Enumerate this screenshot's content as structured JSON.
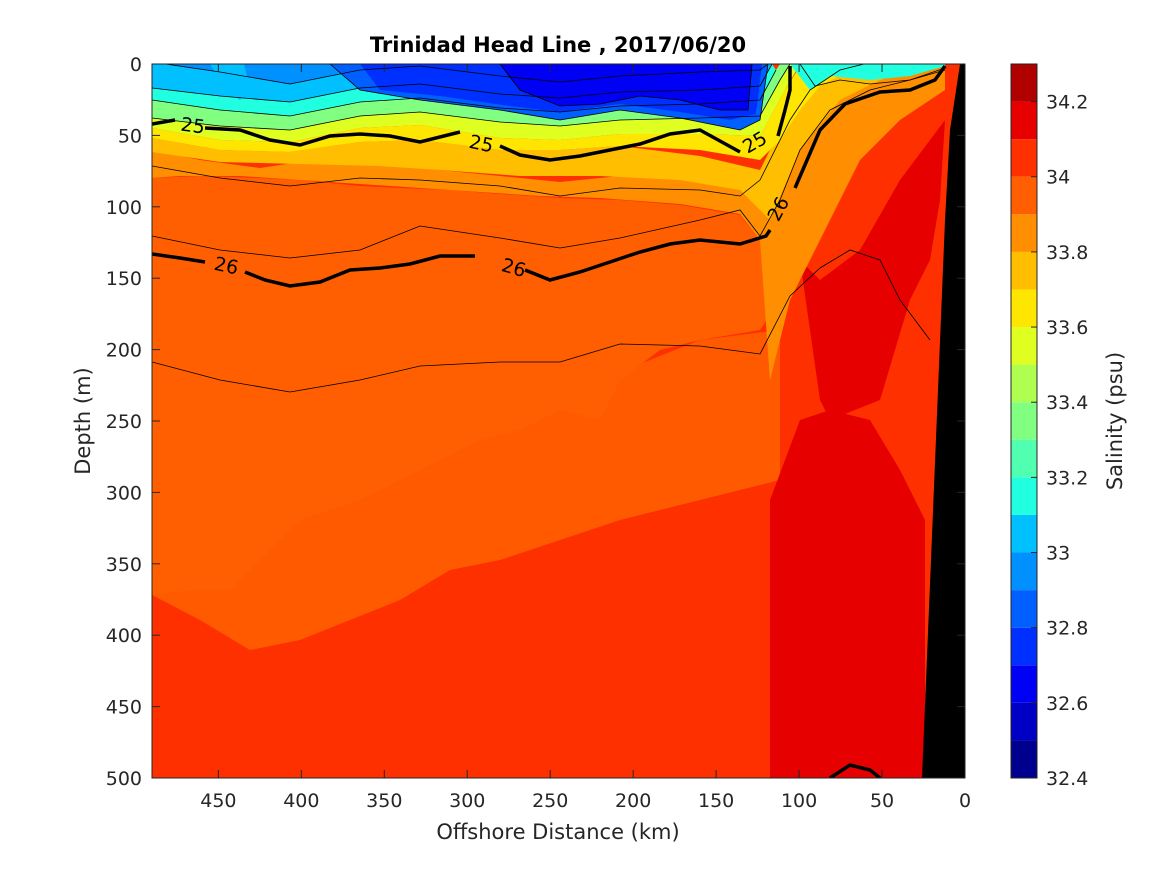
{
  "chart_data": {
    "type": "contour",
    "title": "Trinidad Head Line , 2017/06/20",
    "xlabel": "Offshore Distance (km)",
    "ylabel": "Depth (m)",
    "xlim": [
      490,
      0
    ],
    "ylim": [
      0,
      500
    ],
    "x_reversed": true,
    "y_reversed": true,
    "x_ticks": [
      "450",
      "400",
      "350",
      "300",
      "250",
      "200",
      "150",
      "100",
      "50",
      "0"
    ],
    "x_tick_values": [
      450,
      400,
      350,
      300,
      250,
      200,
      150,
      100,
      50,
      0
    ],
    "y_ticks": [
      "0",
      "50",
      "100",
      "150",
      "200",
      "250",
      "300",
      "350",
      "400",
      "450",
      "500"
    ],
    "y_tick_values": [
      0,
      50,
      100,
      150,
      200,
      250,
      300,
      350,
      400,
      450,
      500
    ],
    "colorbar": {
      "label": "Salinity (psu)",
      "range": [
        32.4,
        34.3
      ],
      "tick_labels": [
        "32.4",
        "32.6",
        "32.8",
        "33",
        "33.2",
        "33.4",
        "33.6",
        "33.8",
        "34",
        "34.2"
      ],
      "tick_values": [
        32.4,
        32.6,
        32.8,
        33.0,
        33.2,
        33.4,
        33.6,
        33.8,
        34.0,
        34.2
      ],
      "levels": [
        32.4,
        32.5,
        32.6,
        32.7,
        32.8,
        32.9,
        33.0,
        33.1,
        33.2,
        33.3,
        33.4,
        33.5,
        33.6,
        33.7,
        33.8,
        33.9,
        34.0,
        34.1,
        34.2,
        34.3
      ],
      "colors": [
        "#00008f",
        "#0000c4",
        "#0000f5",
        "#0030ff",
        "#0060ff",
        "#0090ff",
        "#00c0ff",
        "#20ffdf",
        "#50ffaf",
        "#80ff80",
        "#afff50",
        "#dfff20",
        "#ffe600",
        "#ffbf00",
        "#ff8f00",
        "#ff5f00",
        "#ff3000",
        "#e60000",
        "#b00000"
      ]
    },
    "contour_labels": [
      {
        "text": "25",
        "x": 462,
        "y": 45
      },
      {
        "text": "25",
        "x": 290,
        "y": 56
      },
      {
        "text": "25",
        "x": 125,
        "y": 55
      },
      {
        "text": "26",
        "x": 450,
        "y": 143
      },
      {
        "text": "26",
        "x": 275,
        "y": 144
      },
      {
        "text": "26",
        "x": 110,
        "y": 102
      }
    ],
    "shelf_mask_color": "#000000"
  }
}
